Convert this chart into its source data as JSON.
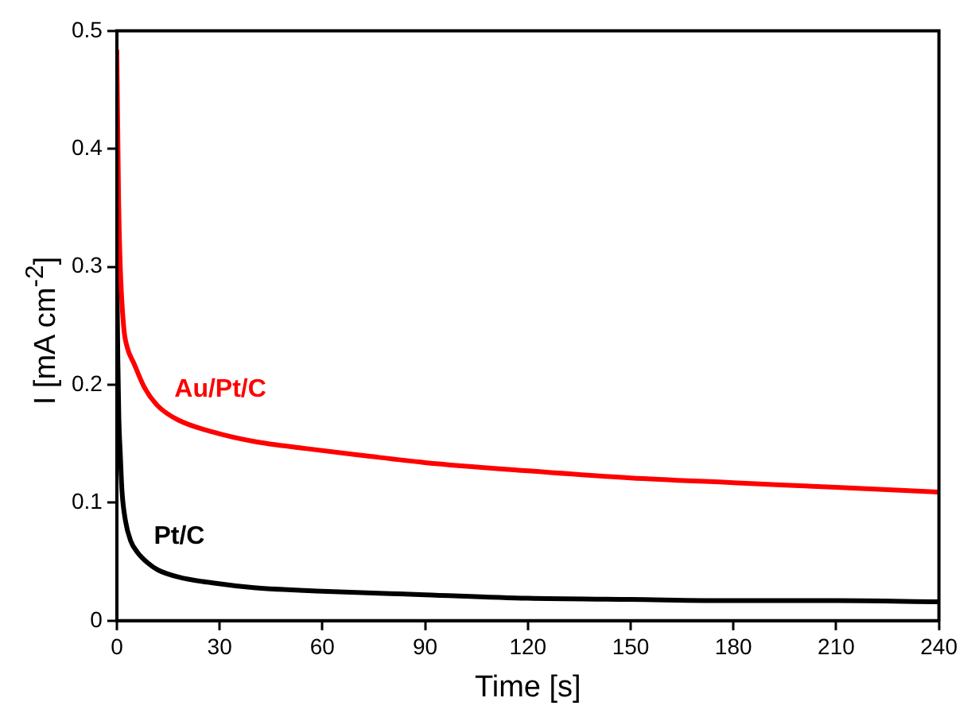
{
  "chart_data": {
    "type": "line",
    "xlabel": "Time [s]",
    "ylabel": "I [mA cm$^{-2}$]",
    "xlim": [
      0,
      240
    ],
    "xticks": [
      0,
      30,
      60,
      90,
      120,
      150,
      180,
      210,
      240
    ],
    "ylim": [
      0,
      0.5
    ],
    "yticks": [
      0,
      0.1,
      0.2,
      0.3,
      0.4,
      0.5
    ],
    "grid": false,
    "legend": false,
    "marker": "none",
    "line_style": "solid",
    "series": [
      {
        "name": "Au/Pt/C",
        "color": "#ff0000",
        "x": [
          0,
          0.5,
          1,
          2,
          3,
          5,
          8,
          12,
          18,
          28,
          40,
          55,
          72,
          90,
          120,
          150,
          180,
          210,
          240
        ],
        "values": [
          0.484,
          0.36,
          0.3,
          0.249,
          0.232,
          0.218,
          0.198,
          0.182,
          0.17,
          0.16,
          0.152,
          0.146,
          0.14,
          0.134,
          0.127,
          0.121,
          0.117,
          0.113,
          0.109
        ]
      },
      {
        "name": "Pt/C",
        "color": "#000000",
        "x": [
          0,
          0.3,
          0.6,
          1,
          1.5,
          2.5,
          4,
          6,
          9,
          12,
          18,
          28,
          40,
          60,
          90,
          120,
          150,
          180,
          210,
          240
        ],
        "values": [
          0.3,
          0.22,
          0.17,
          0.142,
          0.11,
          0.085,
          0.068,
          0.058,
          0.049,
          0.043,
          0.037,
          0.032,
          0.028,
          0.025,
          0.022,
          0.019,
          0.018,
          0.017,
          0.017,
          0.016
        ]
      }
    ]
  }
}
